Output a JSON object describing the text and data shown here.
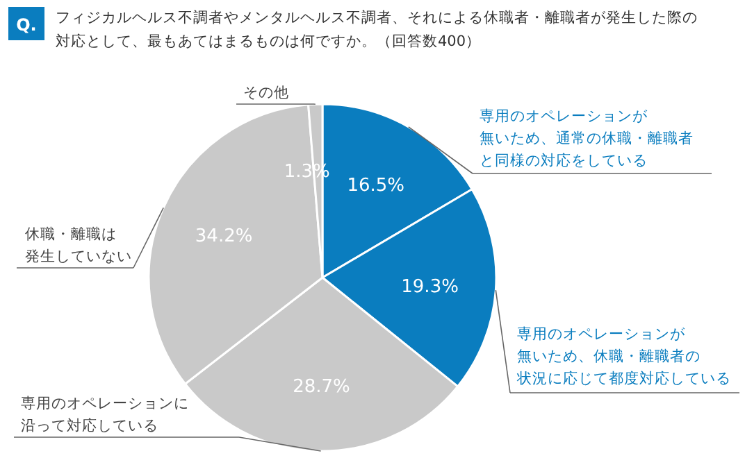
{
  "chart_data": {
    "type": "pie",
    "title": "フィジカルヘルス不調者やメンタルヘルス不調者、それによる休職者・離職者が発生した際の対応として、最もあてはまるものは何ですか。（回答数400）",
    "annotations": [
      "Q."
    ],
    "categories": [
      "専用のオペレーションが無いため、通常の休職・離職者と同様の対応をしている",
      "専用のオペレーションが無いため、休職・離職者の状況に応じて都度対応している",
      "専用のオペレーションに沿って対応している",
      "休職・離職は発生していない",
      "その他"
    ],
    "values": [
      16.5,
      19.3,
      28.7,
      34.2,
      1.3
    ],
    "value_labels": [
      "16.5%",
      "19.3%",
      "28.7%",
      "34.2%",
      "1.3%"
    ],
    "colors": [
      "#0a7dbf",
      "#0a7dbf",
      "#c9c9c9",
      "#c9c9c9",
      "#c9c9c9"
    ]
  }
}
